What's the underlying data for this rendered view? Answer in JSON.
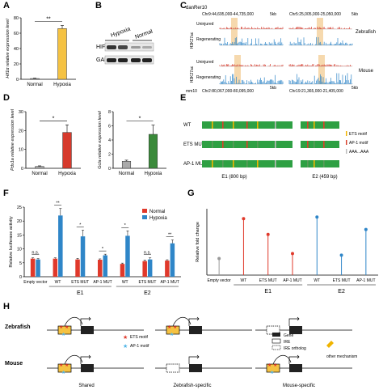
{
  "panel_labels": [
    "A",
    "B",
    "C",
    "D",
    "E",
    "F",
    "G",
    "H"
  ],
  "chart_data": [
    {
      "panel": "A",
      "type": "bar",
      "ylabel": "Hif1α relative expression level",
      "categories": [
        "Normal",
        "Hypoxia"
      ],
      "values": [
        1,
        66
      ],
      "errors": [
        0.5,
        4
      ],
      "colors": [
        "#aaaaaa",
        "#f5c242"
      ],
      "ylim": [
        0,
        80
      ],
      "yticks": [
        0,
        20,
        40,
        60,
        80
      ],
      "significance": "**"
    },
    {
      "panel": "D1",
      "type": "bar",
      "ylabel": "Pdx1a relative expression level",
      "categories": [
        "Normal",
        "Hypoxia"
      ],
      "values": [
        1,
        19
      ],
      "errors": [
        0.3,
        4
      ],
      "colors": [
        "#aaaaaa",
        "#d63a2c"
      ],
      "ylim": [
        0,
        30
      ],
      "yticks": [
        0,
        10,
        20,
        30
      ],
      "significance": "*"
    },
    {
      "panel": "D2",
      "type": "bar",
      "ylabel": "Gcla relative expression level",
      "categories": [
        "Normal",
        "Hypoxia"
      ],
      "values": [
        1,
        4.8
      ],
      "errors": [
        0.15,
        1.3
      ],
      "colors": [
        "#aaaaaa",
        "#3a8a3a"
      ],
      "ylim": [
        0,
        8
      ],
      "yticks": [
        0,
        2,
        4,
        6,
        8
      ],
      "significance": "*"
    },
    {
      "panel": "F",
      "type": "bar",
      "ylabel": "Relative luciferase activity",
      "ylim": [
        0,
        25
      ],
      "yticks": [
        0,
        5,
        10,
        15,
        20,
        25
      ],
      "legend": [
        "Normal",
        "Hypoxia"
      ],
      "legend_colors": [
        "#e0392b",
        "#2f86c8"
      ],
      "categories": [
        "Empty vector",
        "WT",
        "ETS MUT",
        "AP-1 MUT",
        "WT",
        "ETS MUT",
        "AP-1 MUT"
      ],
      "groups": [
        {
          "label": "E1",
          "from": 1,
          "to": 3
        },
        {
          "label": "E2",
          "from": 4,
          "to": 6
        }
      ],
      "series": [
        {
          "name": "Normal",
          "values": [
            6.5,
            6.5,
            6.2,
            6.1,
            4.6,
            5.6,
            5.8
          ],
          "errors": [
            0.3,
            0.3,
            0.4,
            0.3,
            0.3,
            0.4,
            0.3
          ]
        },
        {
          "name": "Hypoxia",
          "values": [
            6.2,
            22,
            14.5,
            7.7,
            14.7,
            6.2,
            12
          ],
          "errors": [
            0.3,
            2.5,
            2.2,
            0.4,
            1.8,
            0.6,
            1.2
          ]
        }
      ],
      "significance": [
        "n.s.",
        "**",
        "*",
        "*",
        "*",
        "n.s.",
        "**"
      ]
    },
    {
      "panel": "G",
      "type": "scatter",
      "ylabel": "Relative fold change",
      "ylim": [
        0,
        4
      ],
      "yticks": [
        0,
        1,
        2,
        3,
        4
      ],
      "categories": [
        "Empty vector",
        "WT",
        "ETS MUT",
        "AP-1 MUT",
        "WT",
        "ETS MUT",
        "AP-1 MUT"
      ],
      "groups": [
        {
          "label": "E1",
          "from": 1,
          "to": 3
        },
        {
          "label": "E2",
          "from": 4,
          "to": 6
        }
      ],
      "values": [
        1.0,
        3.4,
        2.45,
        1.3,
        3.5,
        1.2,
        2.75
      ],
      "colors": [
        "#999999",
        "#e0392b",
        "#e0392b",
        "#e0392b",
        "#2f86c8",
        "#2f86c8",
        "#2f86c8"
      ]
    }
  ],
  "panel_b": {
    "conditions": [
      "Hypoxia",
      "Normal"
    ],
    "bands": [
      "HIF1α",
      "GAPDH"
    ]
  },
  "panel_c": {
    "genome_top": "danRer10",
    "genome_bottom": "mm10",
    "coord_top_left": "Chr9:44,695,000-44,735,000",
    "coord_top_right": "Chr5:25,005,000-25,050,000",
    "coord_bottom_left": "Chr2:80,067,000-80,095,000",
    "coord_bottom_right": "Chr19:21,365,000-21,405,000",
    "scale": "5kb",
    "mark": "H3K27ac",
    "tracks": [
      "Uninjured",
      "Regenerating"
    ],
    "species": [
      "Zebrafish",
      "Mouse"
    ]
  },
  "panel_e": {
    "constructs": [
      "WT",
      "ETS MUT",
      "AP-1 MUT"
    ],
    "e1_label": "E1 (800 bp)",
    "e2_label": "E2 (459 bp)",
    "legend": [
      "ETS motif",
      "AP-1 motif",
      "AAA...AAA"
    ]
  },
  "panel_h": {
    "rows": [
      "Zebrafish",
      "Mouse"
    ],
    "columns": [
      "Shared",
      "Zebrafish-specific",
      "Mouse-specific"
    ],
    "legend": [
      "Gene",
      "IRE",
      "IRE ortholog"
    ],
    "motif_legend": [
      "ETS motif",
      "AP-1 motif"
    ],
    "other_mechanism": "other mechanism"
  }
}
